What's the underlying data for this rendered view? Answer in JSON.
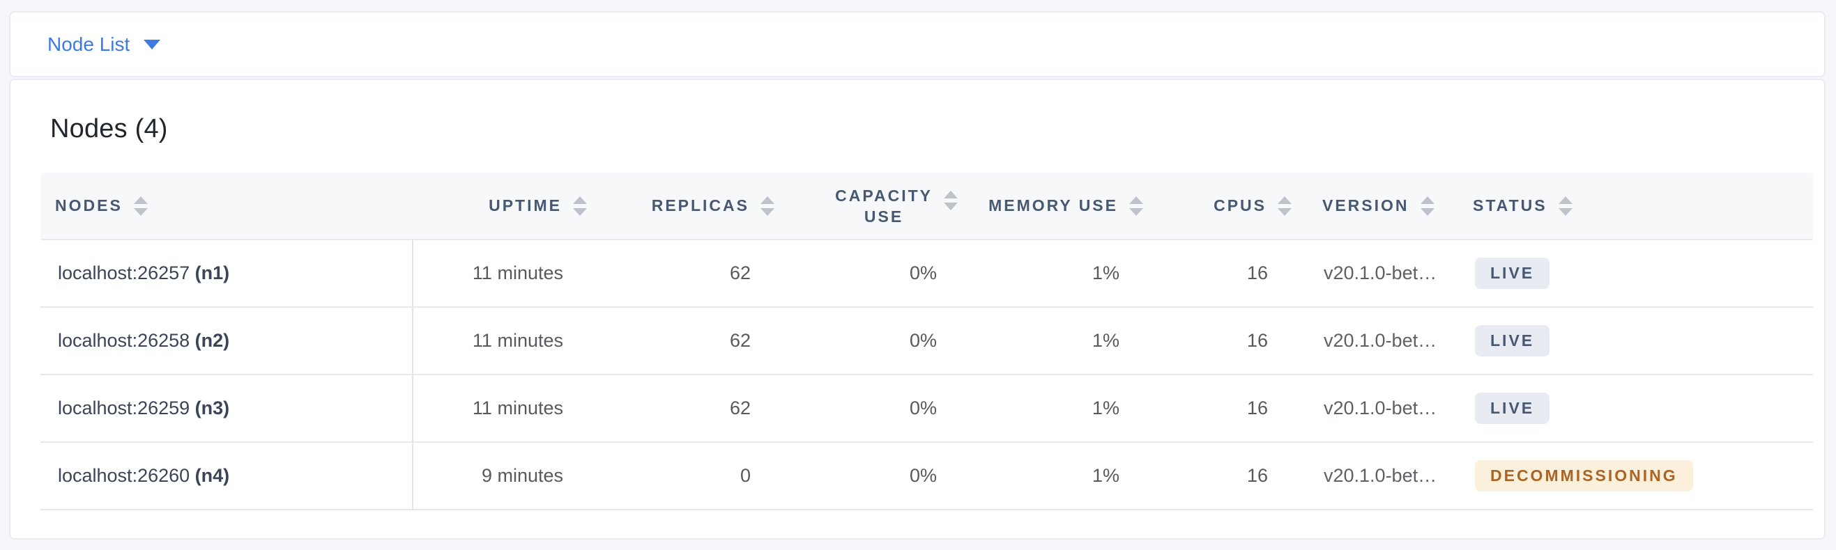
{
  "selector": {
    "label": "Node List"
  },
  "summary": {
    "title": "Nodes (4)"
  },
  "table": {
    "columns": [
      {
        "key": "nodes",
        "label": "NODES",
        "align": "left"
      },
      {
        "key": "uptime",
        "label": "UPTIME",
        "align": "right"
      },
      {
        "key": "replicas",
        "label": "REPLICAS",
        "align": "right"
      },
      {
        "key": "capacity_use",
        "label": "CAPACITY USE",
        "label_line1": "CAPACITY",
        "label_line2": "USE",
        "align": "right"
      },
      {
        "key": "memory_use",
        "label": "MEMORY USE",
        "align": "right"
      },
      {
        "key": "cpus",
        "label": "CPUS",
        "align": "right"
      },
      {
        "key": "version",
        "label": "VERSION",
        "align": "left"
      },
      {
        "key": "status",
        "label": "STATUS",
        "align": "left"
      }
    ],
    "rows": [
      {
        "node": "localhost:26257",
        "node_id": "(n1)",
        "uptime": "11 minutes",
        "replicas": "62",
        "capacity_use": "0%",
        "memory_use": "1%",
        "cpus": "16",
        "version": "v20.1.0-bet…",
        "status": "LIVE"
      },
      {
        "node": "localhost:26258",
        "node_id": "(n2)",
        "uptime": "11 minutes",
        "replicas": "62",
        "capacity_use": "0%",
        "memory_use": "1%",
        "cpus": "16",
        "version": "v20.1.0-bet…",
        "status": "LIVE"
      },
      {
        "node": "localhost:26259",
        "node_id": "(n3)",
        "uptime": "11 minutes",
        "replicas": "62",
        "capacity_use": "0%",
        "memory_use": "1%",
        "cpus": "16",
        "version": "v20.1.0-bet…",
        "status": "LIVE"
      },
      {
        "node": "localhost:26260",
        "node_id": "(n4)",
        "uptime": "9 minutes",
        "replicas": "0",
        "capacity_use": "0%",
        "memory_use": "1%",
        "cpus": "16",
        "version": "v20.1.0-bet…",
        "status": "DECOMMISSIONING"
      }
    ]
  },
  "colors": {
    "page_background": "#f5f7fa",
    "card_background": "#ffffff",
    "card_border": "#e9ecf1",
    "accent_blue": "#3d7be3",
    "header_text": "#475872",
    "header_background": "#f7f8fa",
    "sort_icon": "#bdc2cb",
    "row_border": "#e5e8ef",
    "node_text": "#3b4558",
    "value_text": "#57595e",
    "badge_live_bg": "#e8ebf2",
    "badge_live_text": "#475872",
    "badge_decommissioning_bg": "#faf0dc",
    "badge_decommissioning_text": "#aa6426"
  }
}
